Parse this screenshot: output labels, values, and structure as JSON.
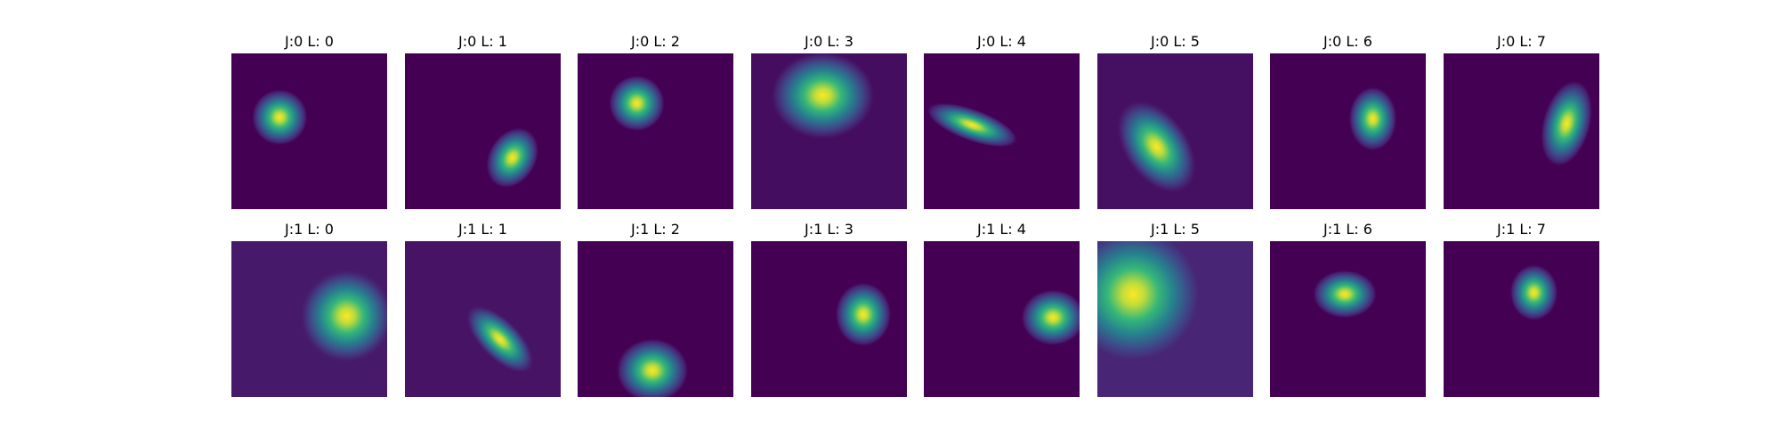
{
  "chart_data": {
    "type": "heatmap",
    "grid": false,
    "colormap": "viridis",
    "colors": {
      "background": "#440154",
      "low": "#440154",
      "mid": "#21918c",
      "high": "#fde725"
    },
    "panels": [
      {
        "title": "J:0 L: 0",
        "blob": {
          "cx": 0.31,
          "cy": 0.41,
          "sx": 0.07,
          "sy": 0.07,
          "angle": 0
        },
        "bg_level": 0.0
      },
      {
        "title": "J:0 L: 1",
        "blob": {
          "cx": 0.69,
          "cy": 0.67,
          "sx": 0.06,
          "sy": 0.08,
          "angle": 30
        },
        "bg_level": 0.0
      },
      {
        "title": "J:0 L: 2",
        "blob": {
          "cx": 0.38,
          "cy": 0.32,
          "sx": 0.07,
          "sy": 0.07,
          "angle": 0
        },
        "bg_level": 0.0
      },
      {
        "title": "J:0 L: 3",
        "blob": {
          "cx": 0.46,
          "cy": 0.27,
          "sx": 0.13,
          "sy": 0.11,
          "angle": 0
        },
        "bg_level": 0.04
      },
      {
        "title": "J:0 L: 4",
        "blob": {
          "cx": 0.31,
          "cy": 0.46,
          "sx": 0.12,
          "sy": 0.04,
          "angle": 20
        },
        "bg_level": 0.0
      },
      {
        "title": "J:0 L: 5",
        "blob": {
          "cx": 0.38,
          "cy": 0.6,
          "sx": 0.08,
          "sy": 0.13,
          "angle": -35
        },
        "bg_level": 0.05
      },
      {
        "title": "J:0 L: 6",
        "blob": {
          "cx": 0.66,
          "cy": 0.42,
          "sx": 0.06,
          "sy": 0.08,
          "angle": 0
        },
        "bg_level": 0.0
      },
      {
        "title": "J:0 L: 7",
        "blob": {
          "cx": 0.79,
          "cy": 0.45,
          "sx": 0.06,
          "sy": 0.11,
          "angle": 15
        },
        "bg_level": 0.0
      },
      {
        "title": "J:1 L: 0",
        "blob": {
          "cx": 0.74,
          "cy": 0.48,
          "sx": 0.12,
          "sy": 0.12,
          "angle": 0
        },
        "bg_level": 0.08
      },
      {
        "title": "J:1 L: 1",
        "blob": {
          "cx": 0.61,
          "cy": 0.63,
          "sx": 0.05,
          "sy": 0.11,
          "angle": -45
        },
        "bg_level": 0.06
      },
      {
        "title": "J:1 L: 2",
        "blob": {
          "cx": 0.48,
          "cy": 0.83,
          "sx": 0.09,
          "sy": 0.08,
          "angle": 0
        },
        "bg_level": 0.0
      },
      {
        "title": "J:1 L: 3",
        "blob": {
          "cx": 0.72,
          "cy": 0.47,
          "sx": 0.07,
          "sy": 0.08,
          "angle": 0
        },
        "bg_level": 0.0
      },
      {
        "title": "J:1 L: 4",
        "blob": {
          "cx": 0.83,
          "cy": 0.49,
          "sx": 0.08,
          "sy": 0.07,
          "angle": 0
        },
        "bg_level": 0.0
      },
      {
        "title": "J:1 L: 5",
        "blob": {
          "cx": 0.23,
          "cy": 0.34,
          "sx": 0.18,
          "sy": 0.18,
          "angle": 0
        },
        "bg_level": 0.12
      },
      {
        "title": "J:1 L: 6",
        "blob": {
          "cx": 0.48,
          "cy": 0.34,
          "sx": 0.08,
          "sy": 0.06,
          "angle": 0
        },
        "bg_level": 0.0
      },
      {
        "title": "J:1 L: 7",
        "blob": {
          "cx": 0.58,
          "cy": 0.33,
          "sx": 0.06,
          "sy": 0.07,
          "angle": 0
        },
        "bg_level": 0.0
      }
    ]
  }
}
